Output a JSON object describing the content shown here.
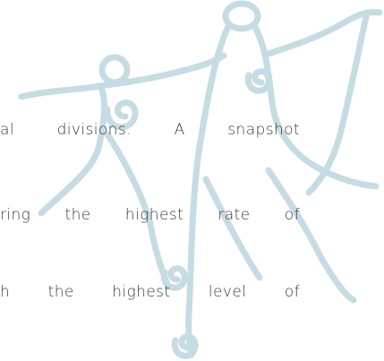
{
  "body": {
    "lines": [
      "al divisions. A snapshot",
      "ring the highest rate of",
      "h the highest level of"
    ]
  }
}
